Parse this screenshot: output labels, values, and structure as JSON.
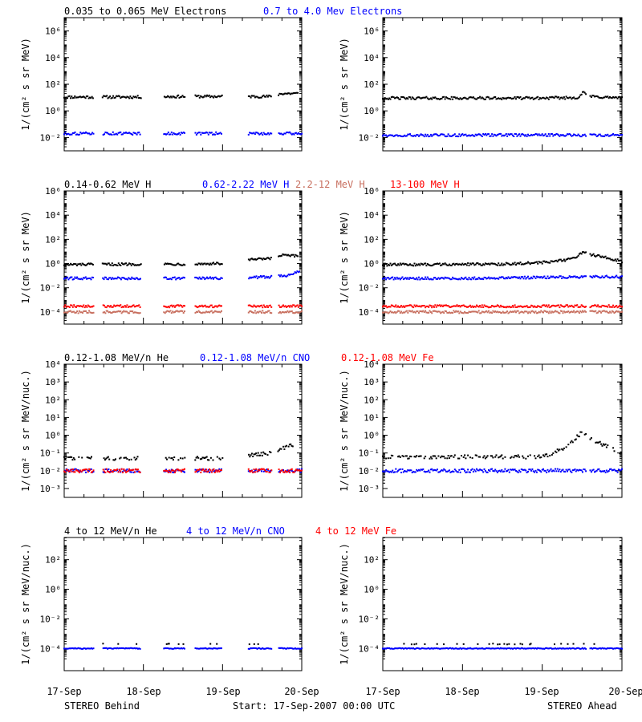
{
  "colors": {
    "black": "#000000",
    "blue": "#0000ff",
    "salmon": "#c87060",
    "red": "#ff0000"
  },
  "panels": [
    {
      "id": "electrons",
      "ylabel": "1/(cm² s sr MeV)",
      "log_range": [
        -3,
        7
      ],
      "ticks": [
        {
          "e": -2,
          "t": "10⁻²"
        },
        {
          "e": 0,
          "t": "10⁰"
        },
        {
          "e": 2,
          "t": "10²"
        },
        {
          "e": 4,
          "t": "10⁴"
        },
        {
          "e": 6,
          "t": "10⁶"
        }
      ],
      "legend": [
        {
          "text": "0.035 to 0.065 MeV Electrons",
          "color": "black"
        },
        {
          "text": "0.7 to 4.0 Mev Electrons",
          "color": "blue"
        }
      ]
    },
    {
      "id": "protons",
      "ylabel": "1/(cm² s sr MeV)",
      "log_range": [
        -5,
        6
      ],
      "ticks": [
        {
          "e": -4,
          "t": "10⁻⁴"
        },
        {
          "e": -2,
          "t": "10⁻²"
        },
        {
          "e": 0,
          "t": "10⁰"
        },
        {
          "e": 2,
          "t": "10²"
        },
        {
          "e": 4,
          "t": "10⁴"
        },
        {
          "e": 6,
          "t": "10⁶"
        }
      ],
      "legend": [
        {
          "text": "0.14-0.62 MeV H",
          "color": "black"
        },
        {
          "text": "0.62-2.22 MeV H",
          "color": "blue"
        },
        {
          "text": "2.2-12 MeV H",
          "color": "salmon"
        },
        {
          "text": "13-100 MeV H",
          "color": "red"
        }
      ]
    },
    {
      "id": "heavy_low",
      "ylabel": "1/(cm² s sr MeV/nuc.)",
      "log_range": [
        -3.5,
        4
      ],
      "ticks": [
        {
          "e": -3,
          "t": "10⁻³"
        },
        {
          "e": -2,
          "t": "10⁻²"
        },
        {
          "e": -1,
          "t": "10⁻¹"
        },
        {
          "e": 0,
          "t": "10⁰"
        },
        {
          "e": 1,
          "t": "10¹"
        },
        {
          "e": 2,
          "t": "10²"
        },
        {
          "e": 3,
          "t": "10³"
        },
        {
          "e": 4,
          "t": "10⁴"
        }
      ],
      "legend": [
        {
          "text": "0.12-1.08 MeV/n He",
          "color": "black"
        },
        {
          "text": "0.12-1.08 MeV/n CNO",
          "color": "blue"
        },
        {
          "text": "0.12-1.08 MeV Fe",
          "color": "red"
        }
      ]
    },
    {
      "id": "heavy_high",
      "ylabel": "1/(cm² s sr MeV/nuc.)",
      "log_range": [
        -5.5,
        3.5
      ],
      "ticks": [
        {
          "e": -4,
          "t": "10⁻⁴"
        },
        {
          "e": -2,
          "t": "10⁻²"
        },
        {
          "e": 0,
          "t": "10⁰"
        },
        {
          "e": 2,
          "t": "10²"
        }
      ],
      "legend": [
        {
          "text": "4 to 12 MeV/n He",
          "color": "black"
        },
        {
          "text": "4 to 12 MeV/n CNO",
          "color": "blue"
        },
        {
          "text": "4 to 12 MeV Fe",
          "color": "red"
        }
      ]
    }
  ],
  "xaxis": {
    "ticks": [
      "17-Sep",
      "18-Sep",
      "19-Sep",
      "20-Sep"
    ]
  },
  "footer": {
    "left": "STEREO Behind",
    "center": "Start: 17-Sep-2007 00:00 UTC",
    "right": "STEREO Ahead"
  },
  "chart_data": {
    "type": "scatter",
    "x_range": [
      "17-Sep-2007",
      "20-Sep-2007"
    ],
    "x_ticks": [
      "17-Sep",
      "18-Sep",
      "19-Sep",
      "20-Sep"
    ],
    "y_scale": "log",
    "behind_data_gaps_day_fraction": [
      [
        0.37,
        0.48
      ],
      [
        0.97,
        1.26
      ],
      [
        1.53,
        1.65
      ],
      [
        2.0,
        2.32
      ],
      [
        2.62,
        2.7
      ]
    ],
    "ahead_data_gaps_day_fraction": [
      [
        2.55,
        2.6
      ]
    ],
    "panels": [
      {
        "legend": [
          "0.035 to 0.065 MeV Electrons",
          "0.7 to 4.0 Mev Electrons"
        ],
        "series": [
          {
            "name": "0.035 to 0.065 MeV Electrons",
            "color": "black",
            "behind": [
              [
                0.0,
                11
              ],
              [
                0.4,
                11
              ],
              [
                1.0,
                11
              ],
              [
                1.5,
                12
              ],
              [
                2.0,
                12
              ],
              [
                2.6,
                12
              ],
              [
                2.75,
                20
              ],
              [
                2.95,
                20
              ]
            ],
            "ahead": [
              [
                0.0,
                9
              ],
              [
                1.0,
                9
              ],
              [
                2.0,
                9
              ],
              [
                2.45,
                10
              ],
              [
                2.52,
                25
              ],
              [
                2.6,
                12
              ],
              [
                3.0,
                9
              ]
            ]
          },
          {
            "name": "0.7 to 4.0 Mev Electrons",
            "color": "blue",
            "behind": [
              [
                0.0,
                0.02
              ],
              [
                3.0,
                0.02
              ]
            ],
            "ahead": [
              [
                0.0,
                0.015
              ],
              [
                3.0,
                0.015
              ]
            ]
          }
        ]
      },
      {
        "legend": [
          "0.14-0.62 MeV H",
          "0.62-2.22 MeV H",
          "2.2-12 MeV H",
          "13-100 MeV H"
        ],
        "series": [
          {
            "name": "0.14-0.62 MeV H",
            "color": "black",
            "behind": [
              [
                0.0,
                0.8
              ],
              [
                1.0,
                0.9
              ],
              [
                1.5,
                0.9
              ],
              [
                2.0,
                1.0
              ],
              [
                2.3,
                2
              ],
              [
                2.6,
                2.5
              ],
              [
                2.75,
                5
              ],
              [
                2.95,
                4
              ]
            ],
            "ahead": [
              [
                0.0,
                0.8
              ],
              [
                1.5,
                0.9
              ],
              [
                2.0,
                1.2
              ],
              [
                2.3,
                2
              ],
              [
                2.45,
                4
              ],
              [
                2.5,
                8
              ],
              [
                2.6,
                6
              ],
              [
                3.0,
                1.5
              ]
            ]
          },
          {
            "name": "0.62-2.22 MeV H",
            "color": "blue",
            "behind": [
              [
                0.0,
                0.06
              ],
              [
                2.0,
                0.06
              ],
              [
                2.6,
                0.08
              ],
              [
                2.8,
                0.1
              ],
              [
                2.97,
                0.25
              ]
            ],
            "ahead": [
              [
                0.0,
                0.06
              ],
              [
                1.0,
                0.06
              ],
              [
                2.0,
                0.07
              ],
              [
                2.5,
                0.08
              ],
              [
                3.0,
                0.08
              ]
            ]
          },
          {
            "name": "2.2-12 MeV H",
            "color": "salmon",
            "behind": [
              [
                0.0,
                0.0001
              ],
              [
                3.0,
                0.0001
              ]
            ],
            "ahead": [
              [
                0.0,
                0.0001
              ],
              [
                3.0,
                0.0001
              ]
            ]
          },
          {
            "name": "13-100 MeV H",
            "color": "red",
            "behind": [
              [
                0.0,
                0.0003
              ],
              [
                3.0,
                0.0003
              ]
            ],
            "ahead": [
              [
                0.0,
                0.0003
              ],
              [
                3.0,
                0.0003
              ]
            ]
          }
        ]
      },
      {
        "legend": [
          "0.12-1.08 MeV/n He",
          "0.12-1.08 MeV/n CNO",
          "0.12-1.08 MeV Fe"
        ],
        "series": [
          {
            "name": "0.12-1.08 MeV/n He",
            "color": "black",
            "behind": [
              [
                0.0,
                0.05
              ],
              [
                2.0,
                0.05
              ],
              [
                2.6,
                0.1
              ],
              [
                2.9,
                0.3
              ]
            ],
            "ahead": [
              [
                0.0,
                0.06
              ],
              [
                2.0,
                0.06
              ],
              [
                2.3,
                0.2
              ],
              [
                2.5,
                1.5
              ],
              [
                2.65,
                0.5
              ],
              [
                3.0,
                0.1
              ]
            ]
          },
          {
            "name": "0.12-1.08 MeV/n CNO",
            "color": "blue",
            "behind": [
              [
                0.0,
                0.01
              ],
              [
                3.0,
                0.01
              ]
            ],
            "ahead": [
              [
                0.0,
                0.01
              ],
              [
                3.0,
                0.01
              ]
            ]
          },
          {
            "name": "0.12-1.08 MeV Fe",
            "color": "red",
            "behind": [
              [
                0.0,
                0.01
              ],
              [
                3.0,
                0.01
              ]
            ],
            "ahead": []
          }
        ]
      },
      {
        "legend": [
          "4 to 12 MeV/n He",
          "4 to 12 MeV/n CNO",
          "4 to 12 MeV Fe"
        ],
        "series": [
          {
            "name": "4 to 12 MeV/n He",
            "color": "black",
            "behind": [
              [
                0.3,
                0.0002
              ],
              [
                1.0,
                0.0002
              ],
              [
                1.5,
                0.0002
              ],
              [
                2.5,
                0.0002
              ]
            ],
            "ahead": [
              [
                0.1,
                0.0002
              ],
              [
                1.2,
                0.0002
              ],
              [
                2.0,
                0.0002
              ],
              [
                2.7,
                0.0002
              ]
            ]
          },
          {
            "name": "4 to 12 MeV/n CNO",
            "color": "blue",
            "behind": [
              [
                0.0,
                0.0001
              ],
              [
                3.0,
                0.0001
              ]
            ],
            "ahead": [
              [
                0.0,
                0.0001
              ],
              [
                3.0,
                0.0001
              ]
            ]
          },
          {
            "name": "4 to 12 MeV Fe",
            "color": "red",
            "behind": [],
            "ahead": []
          }
        ]
      }
    ]
  }
}
